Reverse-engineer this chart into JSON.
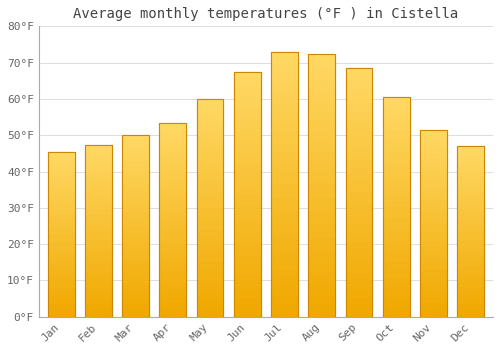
{
  "title": "Average monthly temperatures (°F ) in Cistella",
  "months": [
    "Jan",
    "Feb",
    "Mar",
    "Apr",
    "May",
    "Jun",
    "Jul",
    "Aug",
    "Sep",
    "Oct",
    "Nov",
    "Dec"
  ],
  "values": [
    45.5,
    47.3,
    50.0,
    53.5,
    60.0,
    67.5,
    73.0,
    72.5,
    68.5,
    60.5,
    51.5,
    47.0
  ],
  "bar_color_top": "#FFD966",
  "bar_color_bottom": "#F0A800",
  "bar_edge_color": "#CC8800",
  "background_color": "#FFFFFF",
  "plot_bg_color": "#FFFFFF",
  "grid_color": "#DDDDDD",
  "ylim": [
    0,
    80
  ],
  "yticks": [
    0,
    10,
    20,
    30,
    40,
    50,
    60,
    70,
    80
  ],
  "ytick_labels": [
    "0°F",
    "10°F",
    "20°F",
    "30°F",
    "40°F",
    "50°F",
    "60°F",
    "70°F",
    "80°F"
  ],
  "title_fontsize": 10,
  "tick_fontsize": 8,
  "title_color": "#444444",
  "tick_color": "#666666",
  "bar_width": 0.72
}
